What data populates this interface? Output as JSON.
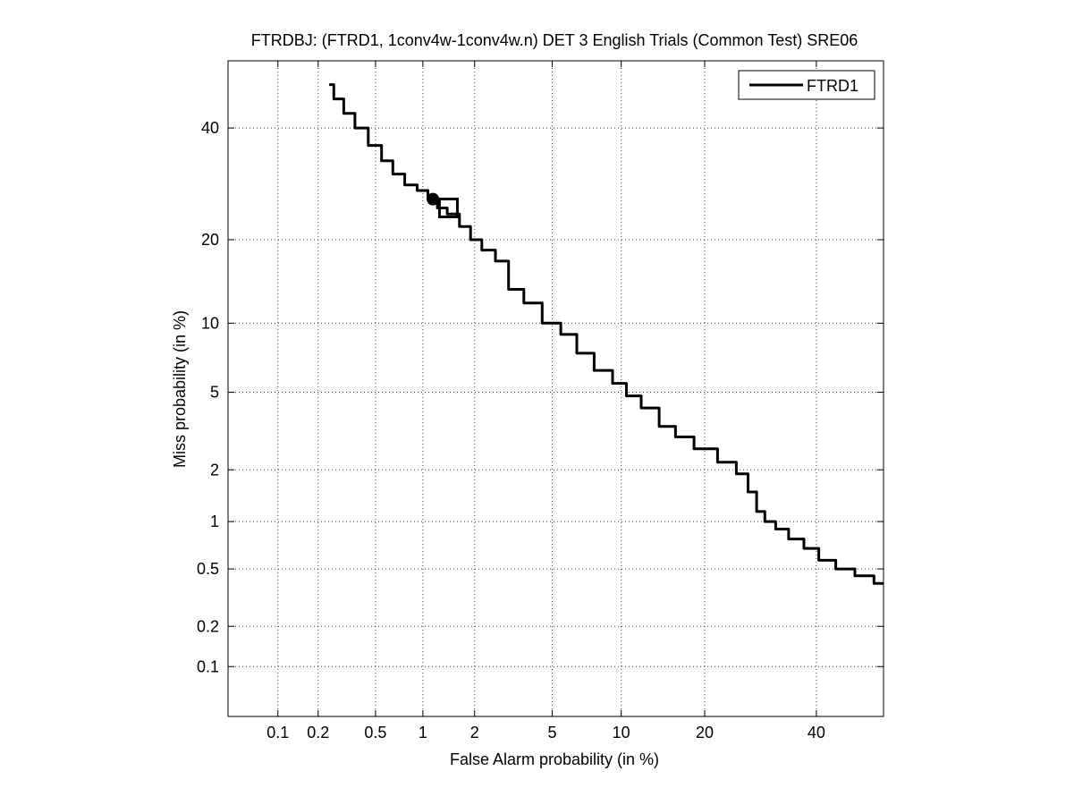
{
  "chart_data": {
    "type": "line",
    "title": "FTRDBJ: (FTRD1, 1conv4w-1conv4w.n) DET 3 English Trials (Common Test) SRE06",
    "xlabel": "False Alarm probability (in %)",
    "ylabel": "Miss probability (in %)",
    "scale": "normal-deviate (probit)",
    "grid": true,
    "legend_position": "top-right",
    "xlim": [
      0.04,
      54
    ],
    "ylim": [
      0.04,
      54
    ],
    "x_ticks": [
      0.1,
      0.2,
      0.5,
      1,
      2,
      5,
      10,
      20,
      40
    ],
    "y_ticks": [
      0.1,
      0.2,
      0.5,
      1,
      2,
      5,
      10,
      20,
      40
    ],
    "x_tick_labels": [
      "0.1",
      "0.2",
      "0.5",
      "1",
      "2",
      "5",
      "10",
      "20",
      "40"
    ],
    "y_tick_labels": [
      "0.1",
      "0.2",
      "0.5",
      "1",
      "2",
      "5",
      "10",
      "20",
      "40"
    ],
    "series": [
      {
        "name": "FTRD1",
        "color": "#000000",
        "x": [
          0.24,
          0.28,
          0.33,
          0.4,
          0.5,
          0.6,
          0.7,
          0.85,
          1.0,
          1.15,
          1.3,
          1.5,
          1.8,
          2.0,
          2.4,
          2.8,
          3.3,
          4.0,
          5.0,
          6.0,
          7.0,
          8.5,
          10.0,
          11.0,
          13.0,
          15.0,
          17.0,
          20.0,
          24.0,
          26.0,
          28.0,
          29.0,
          31.0,
          33.0,
          36.0,
          39.0,
          42.0,
          46.0,
          50.0,
          54.0
        ],
        "y": [
          49,
          46,
          43,
          40,
          36.5,
          33.5,
          31,
          29,
          28,
          26.5,
          25,
          24,
          22,
          20,
          18.5,
          17,
          13.5,
          12,
          10,
          9,
          7.5,
          6.3,
          5.5,
          4.8,
          4.2,
          3.4,
          3.0,
          2.6,
          2.2,
          1.9,
          1.5,
          1.15,
          1.0,
          0.9,
          0.78,
          0.68,
          0.57,
          0.5,
          0.45,
          0.4
        ]
      }
    ],
    "markers": [
      {
        "shape": "circle",
        "x": 1.15,
        "y": 26.5
      },
      {
        "shape": "square",
        "x": 1.42,
        "y": 25.0
      }
    ]
  }
}
